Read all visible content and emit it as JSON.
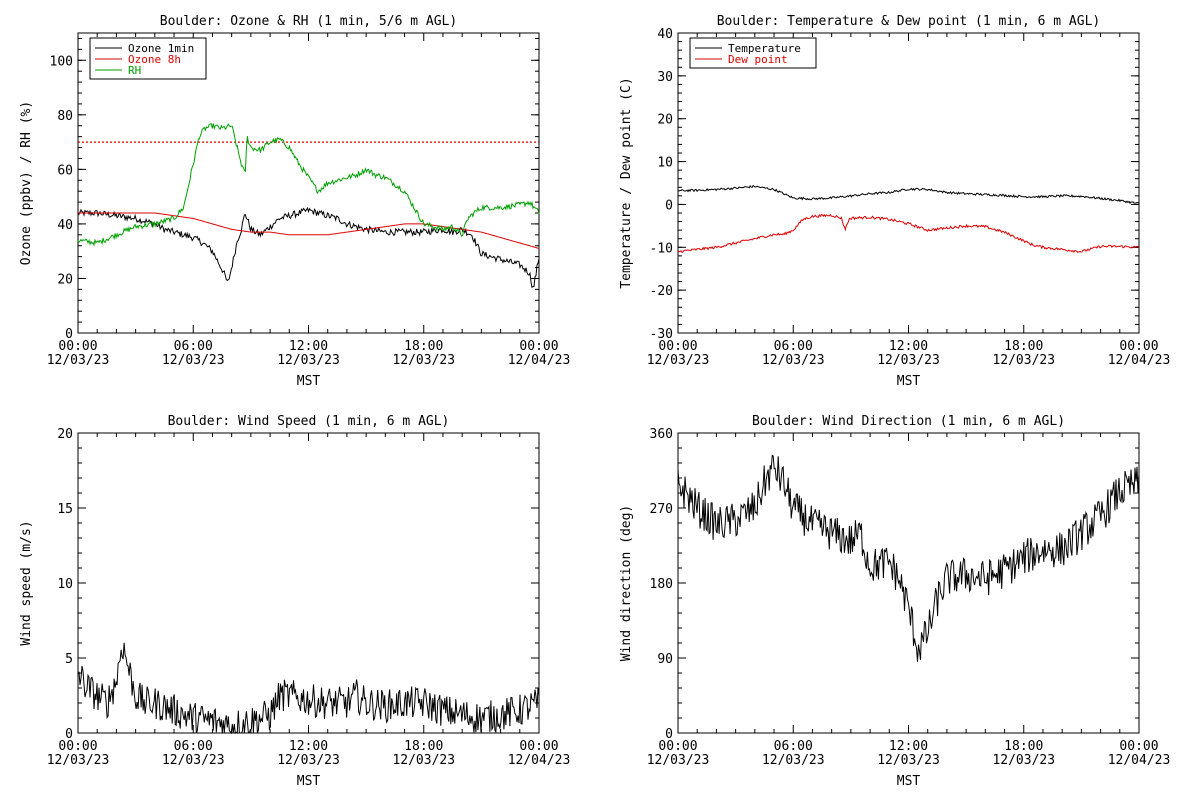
{
  "chart_data": [
    {
      "type": "line",
      "title": "Boulder: Ozone & RH (1 min, 5/6 m AGL)",
      "xlabel": "MST",
      "ylabel": "Ozone (ppbv) / RH (%)",
      "ylim": [
        0,
        110
      ],
      "yticks": [
        0,
        20,
        40,
        60,
        80,
        100
      ],
      "xlim": [
        0,
        24
      ],
      "xticks": [
        {
          "x": 0,
          "time": "00:00",
          "date": "12/03/23"
        },
        {
          "x": 6,
          "time": "06:00",
          "date": "12/03/23"
        },
        {
          "x": 12,
          "time": "12:00",
          "date": "12/03/23"
        },
        {
          "x": 18,
          "time": "18:00",
          "date": "12/03/23"
        },
        {
          "x": 24,
          "time": "00:00",
          "date": "12/04/23"
        }
      ],
      "legend_position": "top-left",
      "reference_line": {
        "y": 70,
        "color": "#dd0000",
        "style": "dotted"
      },
      "series": [
        {
          "name": "Ozone 1min",
          "color": "#000000",
          "noise": 1.2,
          "x": [
            0,
            1,
            2,
            3,
            4,
            4.5,
            5,
            5.5,
            6,
            6.5,
            7,
            7.3,
            7.6,
            7.8,
            8,
            8.3,
            8.5,
            8.7,
            9,
            9.5,
            10,
            10.5,
            11,
            11.5,
            12,
            12.5,
            13,
            13.5,
            14,
            15,
            16,
            17,
            18,
            19,
            19.5,
            20,
            20.5,
            21,
            22,
            23,
            23.5,
            23.7,
            24
          ],
          "y": [
            44,
            44,
            43,
            42,
            40,
            38,
            37,
            36,
            35,
            33,
            30,
            26,
            22,
            18,
            24,
            34,
            38,
            44,
            38,
            36,
            39,
            42,
            43,
            44,
            45,
            44,
            43,
            42,
            40,
            38,
            37,
            37,
            37,
            38,
            37,
            38,
            36,
            29,
            27,
            25,
            22,
            16,
            28
          ]
        },
        {
          "name": "Ozone 8h",
          "color": "#dd0000",
          "noise": 0,
          "x": [
            0,
            2,
            4,
            5,
            6,
            7,
            8,
            9,
            10,
            11,
            12,
            13,
            14,
            15,
            16,
            17,
            18,
            19,
            20,
            21,
            22,
            23,
            24
          ],
          "y": [
            44,
            44,
            44,
            43,
            42,
            40,
            38,
            37,
            37,
            36,
            36,
            36,
            37,
            38,
            39,
            40,
            40,
            39,
            38,
            37,
            35,
            33,
            31
          ]
        },
        {
          "name": "RH",
          "color": "#00a000",
          "noise": 1.0,
          "x": [
            0,
            1,
            2,
            3,
            4,
            5,
            5.5,
            6,
            6.3,
            6.6,
            7,
            7.5,
            8,
            8.5,
            8.7,
            8.8,
            9,
            9.5,
            10,
            10.5,
            11,
            11.5,
            12,
            12.5,
            13,
            13.5,
            14,
            14.5,
            15,
            15.5,
            16,
            17,
            17.5,
            18,
            19,
            19.5,
            20,
            20.3,
            20.6,
            21,
            22,
            23,
            23.5,
            24
          ],
          "y": [
            34,
            33,
            36,
            39,
            40,
            42,
            46,
            62,
            72,
            75,
            76,
            75,
            76,
            62,
            58,
            72,
            68,
            67,
            70,
            71,
            68,
            62,
            57,
            52,
            55,
            56,
            57,
            58,
            60,
            58,
            57,
            52,
            46,
            40,
            38,
            39,
            36,
            42,
            44,
            46,
            46,
            47,
            48,
            44
          ]
        }
      ]
    },
    {
      "type": "line",
      "title": "Boulder: Temperature & Dew point (1 min, 6 m AGL)",
      "xlabel": "MST",
      "ylabel": "Temperature / Dew point (C)",
      "ylim": [
        -30,
        40
      ],
      "yticks": [
        -30,
        -20,
        -10,
        0,
        10,
        20,
        30,
        40
      ],
      "xlim": [
        0,
        24
      ],
      "xticks": [
        {
          "x": 0,
          "time": "00:00",
          "date": "12/03/23"
        },
        {
          "x": 6,
          "time": "06:00",
          "date": "12/03/23"
        },
        {
          "x": 12,
          "time": "12:00",
          "date": "12/03/23"
        },
        {
          "x": 18,
          "time": "18:00",
          "date": "12/03/23"
        },
        {
          "x": 24,
          "time": "00:00",
          "date": "12/04/23"
        }
      ],
      "legend_position": "top-left",
      "series": [
        {
          "name": "Temperature",
          "color": "#000000",
          "noise": 0.25,
          "x": [
            0,
            1,
            2,
            3,
            4,
            5,
            5.5,
            6,
            7,
            8,
            9,
            10,
            11,
            12,
            13,
            14,
            15,
            16,
            17,
            18,
            19,
            20,
            21,
            22,
            23,
            24
          ],
          "y": [
            3.2,
            3.3,
            3.5,
            3.8,
            4.2,
            3.5,
            2.5,
            1.5,
            1.3,
            1.5,
            2.0,
            2.5,
            2.8,
            3.6,
            3.5,
            2.8,
            2.5,
            2.3,
            2.1,
            1.8,
            1.8,
            2.0,
            1.9,
            1.4,
            0.9,
            0.2
          ]
        },
        {
          "name": "Dew point",
          "color": "#dd0000",
          "noise": 0.3,
          "x": [
            0,
            1,
            2,
            3,
            4,
            5,
            5.5,
            6,
            6.5,
            7,
            8,
            8.5,
            8.7,
            8.9,
            9,
            10,
            11,
            12,
            13,
            14,
            15,
            16,
            17,
            18,
            18.5,
            19,
            20,
            21,
            22,
            23,
            24
          ],
          "y": [
            -11,
            -10.5,
            -10,
            -9,
            -8,
            -7,
            -7,
            -6,
            -3.5,
            -2.8,
            -2.5,
            -3.2,
            -5.8,
            -3.5,
            -3.2,
            -3.0,
            -3.5,
            -4.5,
            -6,
            -5.5,
            -5,
            -5.2,
            -6.5,
            -8.5,
            -9.5,
            -10,
            -10.5,
            -11,
            -9.8,
            -9.8,
            -10
          ]
        }
      ]
    },
    {
      "type": "line",
      "title": "Boulder: Wind Speed (1 min, 6 m AGL)",
      "xlabel": "MST",
      "ylabel": "Wind speed (m/s)",
      "ylim": [
        0,
        20
      ],
      "yticks": [
        0,
        5,
        10,
        15,
        20
      ],
      "xlim": [
        0,
        24
      ],
      "xticks": [
        {
          "x": 0,
          "time": "00:00",
          "date": "12/03/23"
        },
        {
          "x": 6,
          "time": "06:00",
          "date": "12/03/23"
        },
        {
          "x": 12,
          "time": "12:00",
          "date": "12/03/23"
        },
        {
          "x": 18,
          "time": "18:00",
          "date": "12/03/23"
        },
        {
          "x": 24,
          "time": "00:00",
          "date": "12/04/23"
        }
      ],
      "series": [
        {
          "name": "",
          "color": "#000000",
          "noise": 1.1,
          "floor": 0,
          "x": [
            0,
            0.5,
            1,
            1.5,
            2,
            2.3,
            2.5,
            2.7,
            3,
            3.5,
            4,
            5,
            6,
            7,
            8,
            9,
            10,
            10.5,
            11,
            12,
            13,
            14,
            14.5,
            15,
            16,
            17,
            18,
            19,
            20,
            21,
            22,
            23,
            24
          ],
          "y": [
            4,
            3,
            2.5,
            2,
            3.5,
            6,
            5,
            4,
            2.5,
            2,
            2,
            1.5,
            1,
            0.8,
            0.5,
            0.8,
            1.2,
            2.5,
            2.5,
            2.2,
            2,
            2,
            2.5,
            2,
            1.8,
            2,
            2,
            1.5,
            1.2,
            1,
            1.2,
            1.5,
            2
          ]
        }
      ]
    },
    {
      "type": "line",
      "title": "Boulder: Wind Direction (1 min, 6 m AGL)",
      "xlabel": "MST",
      "ylabel": "Wind direction (deg)",
      "ylim": [
        0,
        360
      ],
      "yticks": [
        0,
        90,
        180,
        270,
        360
      ],
      "xlim": [
        0,
        24
      ],
      "xticks": [
        {
          "x": 0,
          "time": "00:00",
          "date": "12/03/23"
        },
        {
          "x": 6,
          "time": "06:00",
          "date": "12/03/23"
        },
        {
          "x": 12,
          "time": "12:00",
          "date": "12/03/23"
        },
        {
          "x": 18,
          "time": "18:00",
          "date": "12/03/23"
        },
        {
          "x": 24,
          "time": "00:00",
          "date": "12/04/23"
        }
      ],
      "series": [
        {
          "name": "",
          "color": "#000000",
          "noise": 22,
          "floor": 0,
          "ceil": 360,
          "x": [
            0,
            1,
            2,
            3,
            4,
            4.5,
            5,
            5.5,
            6,
            7,
            8,
            9,
            9.5,
            10,
            11,
            11.5,
            12,
            12.5,
            13,
            13.5,
            14,
            15,
            16,
            17,
            18,
            19,
            20,
            21,
            22,
            23,
            24
          ],
          "y": [
            300,
            270,
            250,
            255,
            270,
            300,
            320,
            300,
            270,
            250,
            240,
            230,
            240,
            200,
            205,
            185,
            150,
            100,
            120,
            160,
            185,
            190,
            185,
            195,
            210,
            220,
            220,
            240,
            260,
            290,
            300
          ]
        }
      ]
    }
  ]
}
